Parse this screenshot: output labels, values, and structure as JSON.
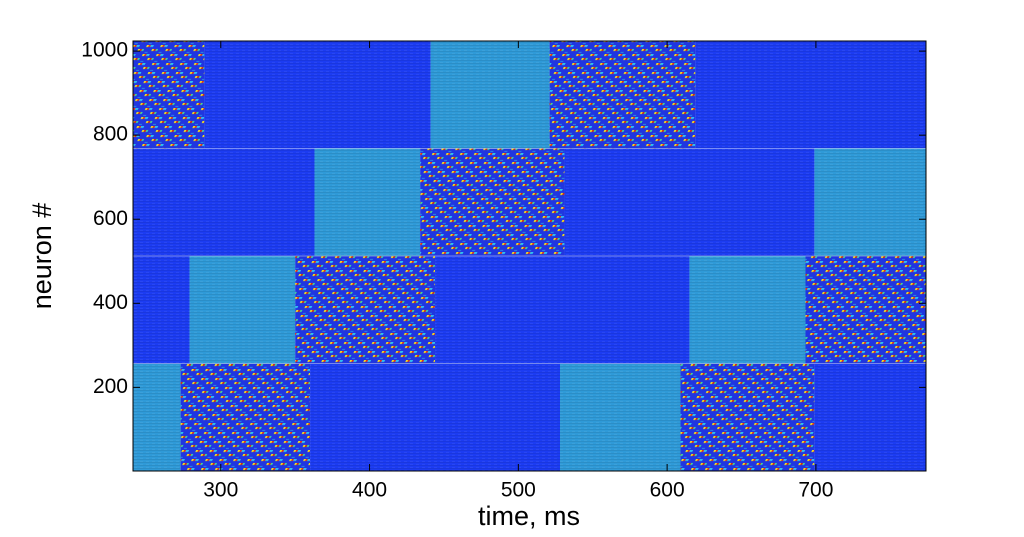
{
  "chart_data": {
    "type": "raster-states",
    "x_label": "time, ms",
    "y_label": "neuron #",
    "xlim": [
      241,
      774
    ],
    "xticks": [
      300,
      400,
      500,
      600,
      700
    ],
    "ylim": [
      1,
      1024
    ],
    "yticks": [
      200,
      400,
      600,
      800,
      1000
    ],
    "state_colors": {
      "dark": "#1c3cf2",
      "light": "#2f9ad8",
      "active": "#2036e0"
    },
    "groups": [
      {
        "neurons": [
          1,
          256
        ],
        "segments": [
          {
            "start": 241,
            "end": 273,
            "state": "light"
          },
          {
            "start": 273,
            "end": 360,
            "state": "active"
          },
          {
            "start": 360,
            "end": 528,
            "state": "dark"
          },
          {
            "start": 528,
            "end": 609,
            "state": "light"
          },
          {
            "start": 609,
            "end": 699,
            "state": "active"
          },
          {
            "start": 699,
            "end": 774,
            "state": "dark"
          }
        ]
      },
      {
        "neurons": [
          257,
          512
        ],
        "segments": [
          {
            "start": 241,
            "end": 279,
            "state": "dark"
          },
          {
            "start": 279,
            "end": 350,
            "state": "light"
          },
          {
            "start": 350,
            "end": 444,
            "state": "active"
          },
          {
            "start": 444,
            "end": 615,
            "state": "dark"
          },
          {
            "start": 615,
            "end": 693,
            "state": "light"
          },
          {
            "start": 693,
            "end": 774,
            "state": "active"
          }
        ]
      },
      {
        "neurons": [
          513,
          768
        ],
        "segments": [
          {
            "start": 241,
            "end": 363,
            "state": "dark"
          },
          {
            "start": 363,
            "end": 434,
            "state": "light"
          },
          {
            "start": 434,
            "end": 531,
            "state": "active"
          },
          {
            "start": 531,
            "end": 699,
            "state": "dark"
          },
          {
            "start": 699,
            "end": 774,
            "state": "light"
          }
        ]
      },
      {
        "neurons": [
          769,
          1024
        ],
        "segments": [
          {
            "start": 241,
            "end": 289,
            "state": "active"
          },
          {
            "start": 289,
            "end": 441,
            "state": "dark"
          },
          {
            "start": 441,
            "end": 521,
            "state": "light"
          },
          {
            "start": 521,
            "end": 619,
            "state": "active"
          },
          {
            "start": 619,
            "end": 774,
            "state": "dark"
          }
        ]
      }
    ]
  }
}
